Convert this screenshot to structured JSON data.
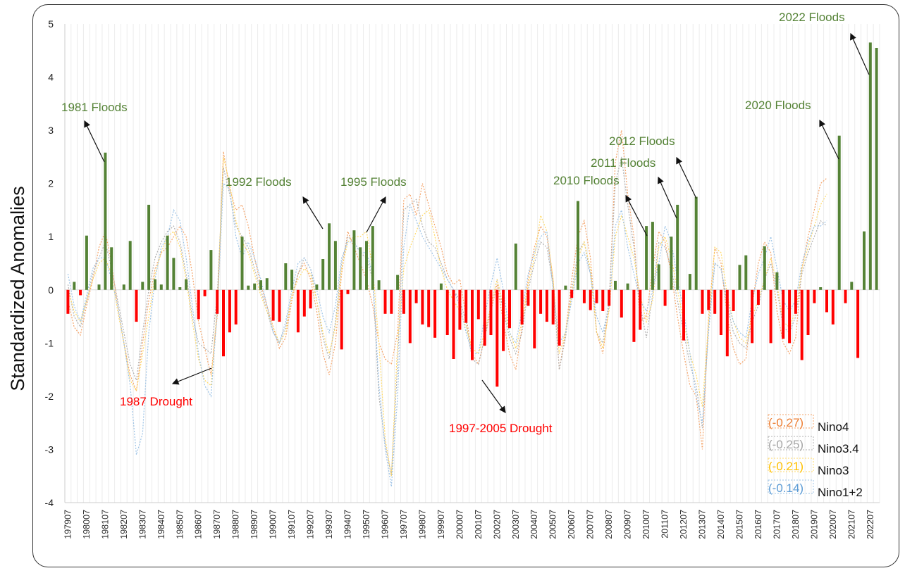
{
  "chart_data": {
    "type": "bar",
    "ylabel": "Standardized  Anomalies",
    "ylim": [
      -4,
      5
    ],
    "yticks": [
      5,
      4,
      3,
      2,
      1,
      0,
      -1,
      -2,
      -3,
      -4
    ],
    "grid": true,
    "x_tick_labels": [
      "197907",
      "198007",
      "198107",
      "198207",
      "198307",
      "198407",
      "198507",
      "198607",
      "198707",
      "198807",
      "198907",
      "199007",
      "199107",
      "199207",
      "199307",
      "199407",
      "199507",
      "199607",
      "199707",
      "199807",
      "199907",
      "200007",
      "200107",
      "200207",
      "200307",
      "200407",
      "200507",
      "200607",
      "200707",
      "200807",
      "200907",
      "201007",
      "201107",
      "201207",
      "201307",
      "201407",
      "201507",
      "201607",
      "201707",
      "201807",
      "201907",
      "202007",
      "202107",
      "202207"
    ],
    "bar_series": {
      "positive_color": "#548235",
      "negative_color": "#ff0000",
      "values": [
        -0.45,
        0.15,
        -0.1,
        1.02,
        0.0,
        0.1,
        2.58,
        0.8,
        0.0,
        0.1,
        0.92,
        -0.6,
        0.15,
        1.6,
        0.2,
        0.1,
        1.02,
        0.6,
        0.05,
        0.2,
        0.0,
        -0.55,
        -0.12,
        0.75,
        -0.45,
        -1.25,
        -0.8,
        -0.65,
        1.0,
        0.08,
        0.12,
        0.18,
        0.22,
        -0.58,
        -0.6,
        0.5,
        0.38,
        -0.8,
        -0.5,
        -0.35,
        0.1,
        0.58,
        1.25,
        0.92,
        -1.12,
        -0.08,
        1.12,
        0.8,
        0.92,
        1.2,
        0.18,
        -0.45,
        -0.45,
        0.28,
        -0.45,
        -1.0,
        -0.25,
        -0.65,
        -0.7,
        -0.9,
        0.12,
        -0.85,
        -1.3,
        -0.75,
        -0.62,
        -1.32,
        -0.55,
        -1.05,
        -0.85,
        -1.82,
        -1.15,
        -0.72,
        0.87,
        -0.65,
        -0.3,
        -1.1,
        -0.45,
        -0.6,
        -0.65,
        -1.05,
        0.08,
        -0.15,
        1.67,
        -0.25,
        -0.38,
        -0.25,
        -0.4,
        -0.3,
        0.17,
        -0.52,
        0.12,
        -0.98,
        -0.75,
        1.2,
        1.28,
        0.48,
        -0.3,
        1.0,
        1.6,
        -0.95,
        0.3,
        1.75,
        -0.45,
        -0.38,
        -0.45,
        -0.85,
        -1.25,
        -0.4,
        0.47,
        0.65,
        -1.0,
        -0.28,
        0.82,
        -1.0,
        0.33,
        -0.92,
        -1.0,
        -0.45,
        -1.32,
        -0.85,
        -0.25,
        0.05,
        -0.42,
        -0.65,
        2.9,
        -0.25,
        0.15,
        -1.28,
        1.1,
        4.65,
        4.55
      ]
    },
    "line_series": [
      {
        "name": "Nino4",
        "corr": "(-0.27)",
        "color": "#f4a46a",
        "values": [
          -0.2,
          -0.7,
          -0.85,
          -0.3,
          0.2,
          0.8,
          1.1,
          0.5,
          -0.3,
          -1.0,
          -1.6,
          -1.9,
          -1.0,
          -0.2,
          0.4,
          0.7,
          0.8,
          1.0,
          1.2,
          1.0,
          0.3,
          -0.6,
          -1.1,
          -1.6,
          -0.5,
          2.6,
          1.9,
          1.5,
          1.6,
          1.2,
          0.6,
          0.1,
          -0.3,
          -0.7,
          -1.1,
          -0.9,
          -0.2,
          0.3,
          0.5,
          0.2,
          -0.4,
          -1.2,
          -1.6,
          -1.0,
          0.3,
          1.1,
          0.8,
          0.5,
          0.2,
          -0.3,
          -1.0,
          -1.3,
          -1.4,
          -0.8,
          1.7,
          1.8,
          1.4,
          2.0,
          1.6,
          1.2,
          0.8,
          0.3,
          0.1,
          0.2,
          -0.5,
          -1.2,
          -1.4,
          -0.9,
          -0.4,
          0.1,
          -0.6,
          -1.2,
          -1.5,
          -0.7,
          0.2,
          0.8,
          1.2,
          1.0,
          0.2,
          -1.5,
          -0.8,
          0.2,
          1.0,
          1.3,
          0.6,
          -0.8,
          -1.2,
          -0.3,
          2.4,
          3.0,
          1.8,
          1.0,
          -0.6,
          -0.5,
          0.4,
          1.1,
          0.9,
          0.3,
          -0.5,
          -1.2,
          -1.8,
          -2.0,
          -3.0,
          -0.5,
          0.8,
          0.5,
          -0.5,
          -1.1,
          -1.4,
          -1.3,
          -0.3,
          0.5,
          0.9,
          0.7,
          -0.4,
          -1.0,
          -1.2,
          -0.9,
          0.4,
          1.0,
          1.5,
          2.0,
          2.1
        ]
      },
      {
        "name": "Nino3.4",
        "corr": "(-0.25)",
        "color": "#b0b0b0",
        "values": [
          0.1,
          -0.5,
          -0.7,
          -0.2,
          0.3,
          0.6,
          0.9,
          0.4,
          -0.2,
          -0.8,
          -1.4,
          -1.7,
          -0.8,
          0.0,
          0.6,
          0.9,
          1.1,
          1.2,
          0.9,
          0.3,
          -0.5,
          -1.0,
          -1.1,
          -1.2,
          -0.1,
          2.3,
          1.8,
          1.2,
          1.0,
          0.8,
          0.4,
          0.0,
          -0.4,
          -0.8,
          -1.0,
          -0.7,
          -0.1,
          0.3,
          0.6,
          0.4,
          -0.2,
          -0.9,
          -1.3,
          -0.6,
          0.5,
          1.0,
          0.9,
          0.7,
          0.6,
          0.2,
          -2.0,
          -2.9,
          -3.5,
          -1.4,
          1.5,
          1.6,
          1.7,
          1.2,
          0.9,
          0.8,
          0.5,
          0.2,
          0.0,
          -0.2,
          -0.6,
          -1.3,
          -1.4,
          -0.9,
          -0.3,
          0.2,
          -0.4,
          -0.9,
          -1.2,
          -0.8,
          0.0,
          0.5,
          0.9,
          0.8,
          0.1,
          -1.5,
          -0.9,
          0.0,
          0.7,
          0.9,
          0.3,
          -0.8,
          -1.0,
          -0.2,
          2.0,
          2.5,
          1.6,
          0.8,
          -0.3,
          -0.9,
          -0.1,
          0.9,
          0.8,
          0.4,
          -0.2,
          -0.8,
          -1.4,
          -1.8,
          -2.6,
          -0.7,
          0.5,
          0.4,
          -0.3,
          -0.8,
          -1.0,
          -1.1,
          -0.6,
          -0.3,
          0.2,
          0.5,
          0.0,
          -0.7,
          -0.8,
          -0.5,
          0.3,
          0.7,
          1.0,
          1.3,
          1.2
        ]
      },
      {
        "name": "Nino3",
        "corr": "(-0.21)",
        "color": "#ffd966",
        "values": [
          0.0,
          -0.4,
          -0.6,
          -0.2,
          0.2,
          0.5,
          0.6,
          0.3,
          -0.4,
          -1.0,
          -1.7,
          -1.9,
          -1.2,
          -0.5,
          0.3,
          0.7,
          1.0,
          1.1,
          0.8,
          0.2,
          -0.6,
          -1.3,
          -1.7,
          -1.8,
          -0.3,
          2.5,
          2.0,
          1.3,
          0.9,
          0.7,
          0.3,
          -0.1,
          -0.4,
          -0.7,
          -1.0,
          -0.8,
          -0.1,
          0.2,
          0.4,
          0.3,
          -0.2,
          -0.8,
          -1.2,
          -0.7,
          0.4,
          0.9,
          1.0,
          1.0,
          1.1,
          0.4,
          -1.0,
          -2.8,
          -3.5,
          -1.0,
          0.4,
          0.8,
          1.1,
          1.4,
          1.5,
          1.0,
          0.4,
          0.0,
          -0.2,
          -0.4,
          -0.7,
          -1.1,
          -1.2,
          -0.8,
          -0.3,
          0.2,
          -0.3,
          -0.8,
          -1.1,
          -0.6,
          0.1,
          0.6,
          1.4,
          1.1,
          0.2,
          -1.2,
          -0.8,
          -0.1,
          0.6,
          0.9,
          0.4,
          -0.8,
          -1.1,
          -0.4,
          1.0,
          1.4,
          1.0,
          0.6,
          -0.1,
          -0.6,
          -0.2,
          0.8,
          1.0,
          0.6,
          0.0,
          -0.6,
          -1.2,
          -1.6,
          -2.2,
          -0.6,
          0.8,
          0.7,
          -0.1,
          -0.6,
          -0.9,
          -1.0,
          -0.5,
          -0.2,
          0.2,
          0.6,
          0.1,
          -0.6,
          -0.7,
          -0.4,
          0.4,
          0.8,
          1.2,
          1.6,
          1.8
        ]
      },
      {
        "name": "Nino1+2",
        "corr": "(-0.14)",
        "color": "#9dc3e6",
        "values": [
          0.3,
          -0.3,
          -0.6,
          -0.1,
          0.4,
          0.6,
          0.6,
          0.2,
          -0.3,
          -1.0,
          -1.8,
          -3.1,
          -2.7,
          -0.8,
          0.2,
          0.8,
          1.0,
          1.5,
          1.3,
          0.6,
          -0.3,
          -1.2,
          -1.8,
          -2.0,
          -0.4,
          2.0,
          1.9,
          1.0,
          0.6,
          0.9,
          0.6,
          0.2,
          -0.3,
          -0.8,
          -1.0,
          -0.6,
          0.0,
          0.5,
          0.6,
          0.4,
          0.0,
          -0.5,
          -0.8,
          -0.3,
          0.6,
          0.9,
          0.9,
          0.7,
          0.7,
          0.3,
          -1.8,
          -3.0,
          -3.7,
          -2.0,
          0.8,
          1.6,
          1.3,
          1.0,
          0.8,
          0.6,
          0.4,
          0.2,
          0.0,
          -0.3,
          -0.8,
          -1.2,
          -1.2,
          -0.5,
          0.1,
          0.6,
          0.0,
          -0.8,
          -1.0,
          -0.4,
          0.3,
          0.7,
          1.0,
          1.1,
          0.0,
          -1.0,
          -0.8,
          -0.2,
          0.5,
          0.7,
          0.3,
          -0.5,
          -0.8,
          -0.3,
          1.2,
          1.5,
          0.8,
          0.3,
          -0.2,
          -0.4,
          0.0,
          0.5,
          1.2,
          0.9,
          0.2,
          -0.4,
          -1.2,
          -2.0,
          -2.5,
          -0.8,
          0.5,
          0.4,
          -0.2,
          -0.6,
          -0.8,
          -0.9,
          -0.2,
          0.3,
          0.6,
          1.0,
          0.4,
          -0.2,
          -0.4,
          -0.2,
          0.5,
          0.9,
          1.2,
          1.2,
          1.3
        ]
      }
    ],
    "annotations": [
      {
        "text": "1981 Floods",
        "color": "#548235"
      },
      {
        "text": "1987 Drought",
        "color": "#ff0000"
      },
      {
        "text": "1992 Floods",
        "color": "#548235"
      },
      {
        "text": "1995 Floods",
        "color": "#548235"
      },
      {
        "text": "1997-2005 Drought",
        "color": "#ff0000"
      },
      {
        "text": "2010 Floods",
        "color": "#548235"
      },
      {
        "text": "2011 Floods",
        "color": "#548235"
      },
      {
        "text": "2012 Floods",
        "color": "#548235"
      },
      {
        "text": "2020 Floods",
        "color": "#548235"
      },
      {
        "text": "2022 Floods",
        "color": "#548235"
      }
    ],
    "legend_position": "bottom-right"
  }
}
